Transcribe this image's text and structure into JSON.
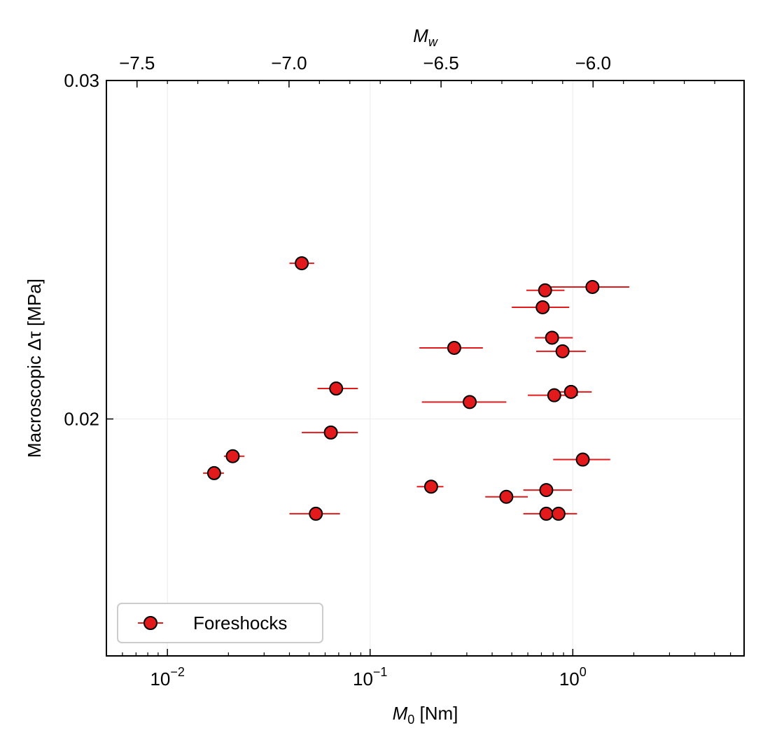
{
  "chart_data": {
    "type": "scatter",
    "title": "",
    "xlabel": "M0 [Nm]",
    "xlabel_main": "M",
    "xlabel_sub": "0",
    "xlabel_unit": " [Nm]",
    "x_scale": "log",
    "xlim": [
      0.005,
      7.0
    ],
    "x_ticks": [
      {
        "value": 0.01,
        "label_base": "10",
        "label_exp": "−2"
      },
      {
        "value": 0.1,
        "label_base": "10",
        "label_exp": "−1"
      },
      {
        "value": 1,
        "label_base": "10",
        "label_exp": "0"
      }
    ],
    "ylabel": "Macroscopic Δτ [MPa]",
    "ylim": [
      0.013,
      0.03
    ],
    "y_ticks": [
      {
        "value": 0.02,
        "label": "0.02"
      },
      {
        "value": 0.03,
        "label": "0.03"
      }
    ],
    "top_xlabel": "Mw",
    "top_xlabel_main": "M",
    "top_xlabel_sub": "w",
    "top_x_ticks": [
      {
        "value": -7.5,
        "label": "−7.5"
      },
      {
        "value": -7.0,
        "label": "−7.0"
      },
      {
        "value": -6.5,
        "label": "−6.5"
      },
      {
        "value": -6.0,
        "label": "−6.0"
      }
    ],
    "grid": true,
    "legend": {
      "position": "bottom-left"
    },
    "series": [
      {
        "name": "Foreshocks",
        "color": "#e31a1c",
        "marker": "circle",
        "points": [
          {
            "x": 0.046,
            "y": 0.0246,
            "xerr_lo": 0.04,
            "xerr_hi": 0.053
          },
          {
            "x": 1.25,
            "y": 0.0239,
            "xerr_lo": 0.74,
            "xerr_hi": 1.9
          },
          {
            "x": 0.73,
            "y": 0.0238,
            "xerr_lo": 0.59,
            "xerr_hi": 0.91
          },
          {
            "x": 0.71,
            "y": 0.0233,
            "xerr_lo": 0.5,
            "xerr_hi": 0.96
          },
          {
            "x": 0.79,
            "y": 0.0224,
            "xerr_lo": 0.65,
            "xerr_hi": 1.0
          },
          {
            "x": 0.89,
            "y": 0.022,
            "xerr_lo": 0.66,
            "xerr_hi": 1.16
          },
          {
            "x": 0.26,
            "y": 0.0221,
            "xerr_lo": 0.175,
            "xerr_hi": 0.36
          },
          {
            "x": 0.068,
            "y": 0.0209,
            "xerr_lo": 0.055,
            "xerr_hi": 0.087
          },
          {
            "x": 0.98,
            "y": 0.0208,
            "xerr_lo": 0.78,
            "xerr_hi": 1.24
          },
          {
            "x": 0.81,
            "y": 0.0207,
            "xerr_lo": 0.6,
            "xerr_hi": 1.06
          },
          {
            "x": 0.31,
            "y": 0.0205,
            "xerr_lo": 0.18,
            "xerr_hi": 0.47
          },
          {
            "x": 0.064,
            "y": 0.0196,
            "xerr_lo": 0.046,
            "xerr_hi": 0.087
          },
          {
            "x": 0.021,
            "y": 0.0189,
            "xerr_lo": 0.019,
            "xerr_hi": 0.024
          },
          {
            "x": 1.12,
            "y": 0.0188,
            "xerr_lo": 0.8,
            "xerr_hi": 1.53
          },
          {
            "x": 0.017,
            "y": 0.0184,
            "xerr_lo": 0.015,
            "xerr_hi": 0.019
          },
          {
            "x": 0.2,
            "y": 0.018,
            "xerr_lo": 0.17,
            "xerr_hi": 0.23
          },
          {
            "x": 0.74,
            "y": 0.0179,
            "xerr_lo": 0.57,
            "xerr_hi": 0.99
          },
          {
            "x": 0.47,
            "y": 0.0177,
            "xerr_lo": 0.37,
            "xerr_hi": 0.6
          },
          {
            "x": 0.054,
            "y": 0.0172,
            "xerr_lo": 0.04,
            "xerr_hi": 0.071
          },
          {
            "x": 0.74,
            "y": 0.0172,
            "xerr_lo": 0.57,
            "xerr_hi": 0.95
          },
          {
            "x": 0.85,
            "y": 0.0172,
            "xerr_lo": 0.69,
            "xerr_hi": 1.05
          }
        ]
      }
    ]
  }
}
